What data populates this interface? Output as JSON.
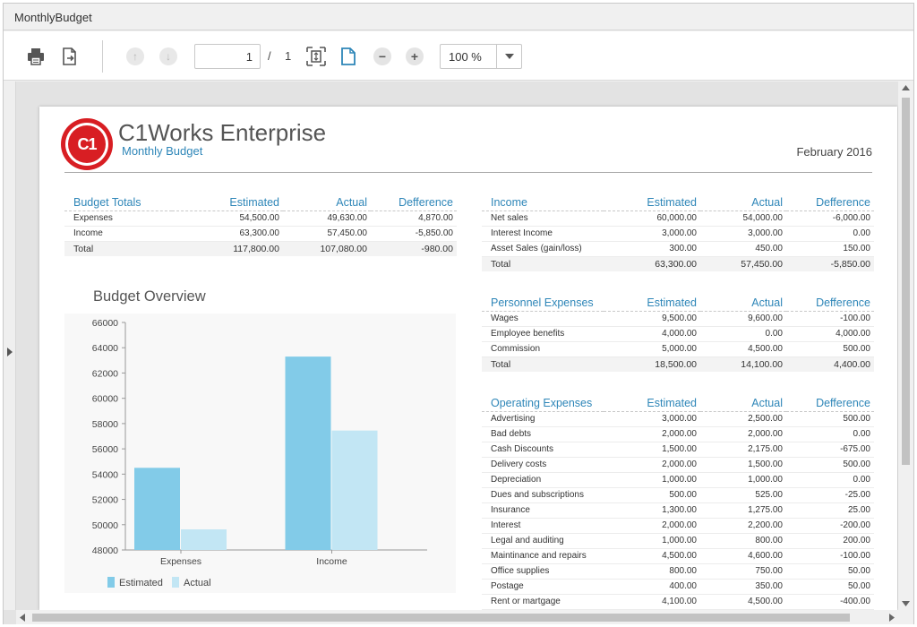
{
  "window": {
    "title": "MonthlyBudget"
  },
  "toolbar": {
    "page_current": "1",
    "page_separator": "/",
    "page_total": "1",
    "zoom": "100 %"
  },
  "report": {
    "company": "C1Works Enterprise",
    "logo_text": "C1",
    "subtitle": "Monthly Budget",
    "date": "February 2016",
    "budget_totals": {
      "headers": [
        "Budget Totals",
        "Estimated",
        "Actual",
        "Defference"
      ],
      "rows": [
        [
          "Expenses",
          "54,500.00",
          "49,630.00",
          "4,870.00"
        ],
        [
          "Income",
          "63,300.00",
          "57,450.00",
          "-5,850.00"
        ]
      ],
      "total": [
        "Total",
        "117,800.00",
        "107,080.00",
        "-980.00"
      ]
    },
    "income": {
      "headers": [
        "Income",
        "Estimated",
        "Actual",
        "Defference"
      ],
      "rows": [
        [
          "Net sales",
          "60,000.00",
          "54,000.00",
          "-6,000.00"
        ],
        [
          "Interest Income",
          "3,000.00",
          "3,000.00",
          "0.00"
        ],
        [
          "Asset Sales (gain/loss)",
          "300.00",
          "450.00",
          "150.00"
        ]
      ],
      "total": [
        "Total",
        "63,300.00",
        "57,450.00",
        "-5,850.00"
      ]
    },
    "personnel": {
      "headers": [
        "Personnel Expenses",
        "Estimated",
        "Actual",
        "Defference"
      ],
      "rows": [
        [
          "Wages",
          "9,500.00",
          "9,600.00",
          "-100.00"
        ],
        [
          "Employee benefits",
          "4,000.00",
          "0.00",
          "4,000.00"
        ],
        [
          "Commission",
          "5,000.00",
          "4,500.00",
          "500.00"
        ]
      ],
      "total": [
        "Total",
        "18,500.00",
        "14,100.00",
        "4,400.00"
      ]
    },
    "operating": {
      "headers": [
        "Operating Expenses",
        "Estimated",
        "Actual",
        "Defference"
      ],
      "rows": [
        [
          "Advertising",
          "3,000.00",
          "2,500.00",
          "500.00"
        ],
        [
          "Bad debts",
          "2,000.00",
          "2,000.00",
          "0.00"
        ],
        [
          "Cash Discounts",
          "1,500.00",
          "2,175.00",
          "-675.00"
        ],
        [
          "Delivery costs",
          "2,000.00",
          "1,500.00",
          "500.00"
        ],
        [
          "Depreciation",
          "1,000.00",
          "1,000.00",
          "0.00"
        ],
        [
          "Dues and subscriptions",
          "500.00",
          "525.00",
          "-25.00"
        ],
        [
          "Insurance",
          "1,300.00",
          "1,275.00",
          "25.00"
        ],
        [
          "Interest",
          "2,000.00",
          "2,200.00",
          "-200.00"
        ],
        [
          "Legal and auditing",
          "1,000.00",
          "800.00",
          "200.00"
        ],
        [
          "Maintinance and repairs",
          "4,500.00",
          "4,600.00",
          "-100.00"
        ],
        [
          "Office supplies",
          "800.00",
          "750.00",
          "50.00"
        ],
        [
          "Postage",
          "400.00",
          "350.00",
          "50.00"
        ],
        [
          "Rent or martgage",
          "4,100.00",
          "4,500.00",
          "-400.00"
        ]
      ]
    }
  },
  "chart_data": {
    "type": "bar",
    "title": "Budget Overview",
    "categories": [
      "Expenses",
      "Income"
    ],
    "series": [
      {
        "name": "Estimated",
        "values": [
          54500,
          63300
        ],
        "color": "#82cbe8"
      },
      {
        "name": "Actual",
        "values": [
          49630,
          57450
        ],
        "color": "#c2e6f4"
      }
    ],
    "ylim": [
      48000,
      66000
    ],
    "yticks": [
      "48000",
      "50000",
      "52000",
      "54000",
      "56000",
      "58000",
      "60000",
      "62000",
      "64000",
      "66000"
    ],
    "legend": "bottom-left",
    "grid": false
  },
  "colors": {
    "accent": "#2e86b8",
    "logo_red": "#d81e23"
  }
}
